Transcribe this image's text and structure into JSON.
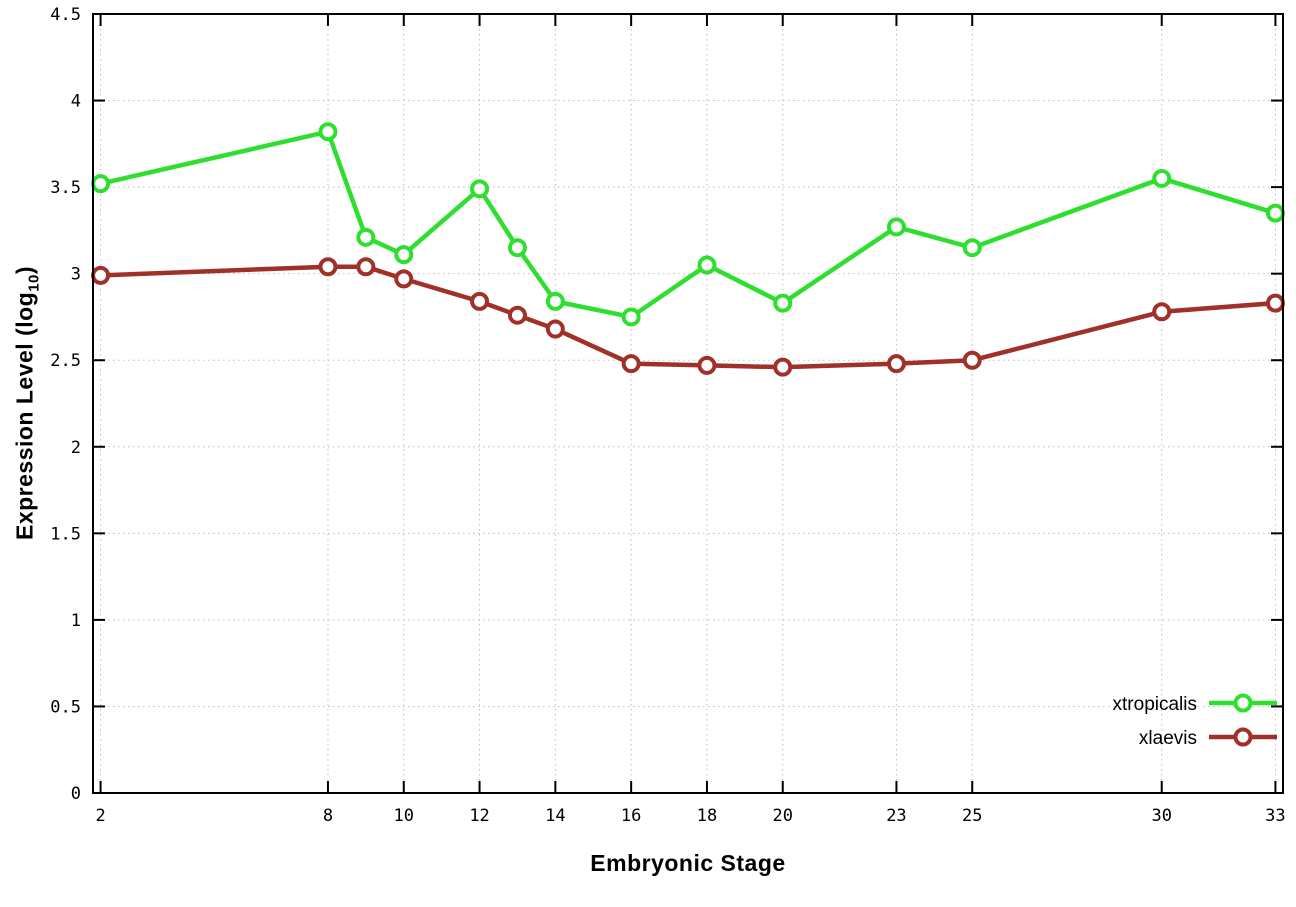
{
  "chart_data": {
    "type": "line",
    "title": "",
    "xlabel": "Embryonic Stage",
    "ylabel": {
      "main": "Expression Level (log",
      "sub": "10",
      "suffix": ")"
    },
    "xlim": [
      1.8,
      33.2
    ],
    "ylim": [
      0,
      4.5
    ],
    "xticks": [
      2,
      8,
      10,
      12,
      14,
      16,
      18,
      20,
      23,
      25,
      30,
      33
    ],
    "yticks": [
      0,
      0.5,
      1,
      1.5,
      2,
      2.5,
      3,
      3.5,
      4,
      4.5
    ],
    "grid": "dotted",
    "legend_position": "bottom-right",
    "x": [
      2,
      8,
      9,
      10,
      12,
      13,
      14,
      16,
      18,
      20,
      23,
      25,
      30,
      33
    ],
    "series": [
      {
        "name": "xtropicalis",
        "color": "#2fdf2f",
        "values": [
          3.52,
          3.82,
          3.21,
          3.11,
          3.49,
          3.15,
          2.84,
          2.75,
          3.05,
          2.83,
          3.27,
          3.15,
          3.55,
          3.35
        ]
      },
      {
        "name": "xlaevis",
        "color": "#a03028",
        "values": [
          2.99,
          3.04,
          3.04,
          2.97,
          2.84,
          2.76,
          2.68,
          2.48,
          2.47,
          2.46,
          2.48,
          2.5,
          2.78,
          2.83
        ]
      }
    ]
  }
}
